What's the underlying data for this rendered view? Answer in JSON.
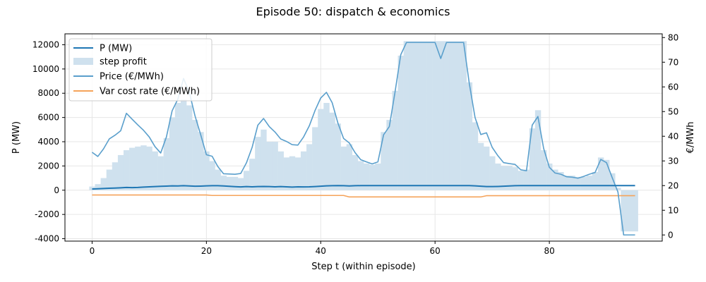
{
  "chart_data": {
    "type": "bar+line",
    "title": "Episode 50: dispatch & economics",
    "xlabel": "Step t (within episode)",
    "ylabel": "P (MW)",
    "y2label": "€/MWh",
    "xlim": [
      -4.75,
      99.75
    ],
    "ylim": [
      -4200,
      12900
    ],
    "y2lim": [
      -2.5,
      81.5
    ],
    "x_ticks": [
      0,
      20,
      40,
      60,
      80
    ],
    "y_ticks": [
      -4000,
      -2000,
      0,
      2000,
      4000,
      6000,
      8000,
      10000,
      12000
    ],
    "y2_ticks": [
      0,
      10,
      20,
      30,
      40,
      50,
      60,
      70,
      80
    ],
    "grid": true,
    "legend_position": "upper-left",
    "legend": [
      "P (MW)",
      "step profit",
      "Price (€/MWh)",
      "Var cost rate (€/MWh)"
    ],
    "colors": {
      "power": "#1f77b4",
      "profit": "#cfe1ee",
      "price": "#5a9fcc",
      "varcost": "#f5a35a"
    },
    "series": [
      {
        "name": "P (MW)",
        "axis": "left",
        "kind": "line",
        "values": [
          100,
          120,
          140,
          160,
          180,
          200,
          230,
          210,
          230,
          260,
          280,
          300,
          320,
          340,
          360,
          350,
          370,
          350,
          330,
          340,
          360,
          370,
          370,
          350,
          320,
          290,
          270,
          300,
          280,
          300,
          310,
          300,
          280,
          300,
          280,
          260,
          280,
          270,
          280,
          300,
          330,
          360,
          370,
          380,
          370,
          350,
          370,
          380,
          380,
          380,
          380,
          380,
          380,
          380,
          380,
          380,
          380,
          380,
          380,
          380,
          380,
          380,
          380,
          380,
          380,
          380,
          380,
          360,
          330,
          300,
          300,
          310,
          330,
          350,
          370,
          380,
          380,
          380,
          380,
          380,
          380,
          380,
          380,
          380,
          380,
          380,
          380,
          380,
          380,
          380,
          380,
          380,
          380,
          380,
          380,
          380
        ]
      },
      {
        "name": "step profit",
        "axis": "left",
        "kind": "bar",
        "values": [
          300,
          500,
          1000,
          1700,
          2300,
          2900,
          3300,
          3500,
          3600,
          3700,
          3600,
          3200,
          2800,
          4300,
          6000,
          7200,
          7500,
          7000,
          5800,
          4800,
          3200,
          2400,
          1700,
          1200,
          1100,
          1100,
          1000,
          1600,
          2600,
          4400,
          5000,
          4000,
          4000,
          3200,
          2700,
          2800,
          2700,
          3200,
          3800,
          5200,
          6700,
          7200,
          6400,
          5500,
          3600,
          3800,
          2900,
          2400,
          2200,
          2100,
          2200,
          4800,
          5800,
          8200,
          11100,
          12300,
          12300,
          12300,
          12300,
          12300,
          12300,
          12300,
          12300,
          12300,
          12300,
          12300,
          8900,
          5600,
          3900,
          3600,
          2800,
          2200,
          2000,
          2000,
          1900,
          1600,
          1700,
          5100,
          6600,
          3300,
          2200,
          1700,
          1500,
          1200,
          1200,
          1100,
          1100,
          1200,
          1500,
          2700,
          2500,
          1400,
          200,
          -3400,
          -3400,
          -3400
        ]
      },
      {
        "name": "Price (€/MWh)",
        "axis": "right",
        "kind": "line",
        "values": [
          33.5,
          31.8,
          34.9,
          38.9,
          40.4,
          42.2,
          49.3,
          46.9,
          44.6,
          42.4,
          39.7,
          35.8,
          33.2,
          39.7,
          50.3,
          55.0,
          63.4,
          57.9,
          48.3,
          40.6,
          32.5,
          31.9,
          27.7,
          24.8,
          24.7,
          24.6,
          24.9,
          29.2,
          35.5,
          44.5,
          47.2,
          43.9,
          41.7,
          38.9,
          37.9,
          36.6,
          36.4,
          39.7,
          44.2,
          50.4,
          55.5,
          57.8,
          53.6,
          45.4,
          39.1,
          37.3,
          33.4,
          30.5,
          29.6,
          28.8,
          29.6,
          40.6,
          43.9,
          57.9,
          73.0,
          78.0,
          78.0,
          78.0,
          78.0,
          78.0,
          78.0,
          71.5,
          78.0,
          78.0,
          78.0,
          78.0,
          61.3,
          47.6,
          40.7,
          41.4,
          35.5,
          32.1,
          29.3,
          28.9,
          28.6,
          26.4,
          26.0,
          44.5,
          48.0,
          35.1,
          27.4,
          25.1,
          24.6,
          23.6,
          23.4,
          23.0,
          23.7,
          24.6,
          25.3,
          30.6,
          29.3,
          23.2,
          17.4,
          0.0,
          0.0,
          0.0
        ]
      },
      {
        "name": "Var cost rate (€/MWh)",
        "axis": "right",
        "kind": "line",
        "values": [
          16.2,
          16.2,
          16.2,
          16.2,
          16.2,
          16.2,
          16.2,
          16.2,
          16.2,
          16.2,
          16.2,
          16.2,
          16.2,
          16.2,
          16.2,
          16.2,
          16.2,
          16.2,
          16.2,
          16.2,
          16.2,
          16.0,
          16.0,
          16.0,
          16.0,
          16.0,
          16.0,
          16.0,
          16.0,
          16.0,
          16.0,
          16.0,
          16.0,
          16.0,
          16.0,
          16.0,
          16.0,
          16.0,
          16.0,
          16.0,
          16.0,
          16.0,
          16.0,
          16.0,
          16.0,
          15.4,
          15.4,
          15.4,
          15.4,
          15.4,
          15.4,
          15.4,
          15.4,
          15.4,
          15.4,
          15.4,
          15.4,
          15.4,
          15.4,
          15.4,
          15.4,
          15.4,
          15.4,
          15.4,
          15.4,
          15.4,
          15.4,
          15.4,
          15.4,
          15.9,
          15.9,
          15.9,
          15.9,
          15.9,
          15.9,
          15.9,
          15.9,
          15.9,
          15.9,
          15.9,
          15.9,
          15.9,
          15.9,
          15.9,
          15.9,
          15.9,
          15.9,
          15.9,
          15.9,
          15.9,
          15.9,
          15.9,
          15.9,
          15.9,
          15.9,
          15.9
        ]
      }
    ]
  }
}
